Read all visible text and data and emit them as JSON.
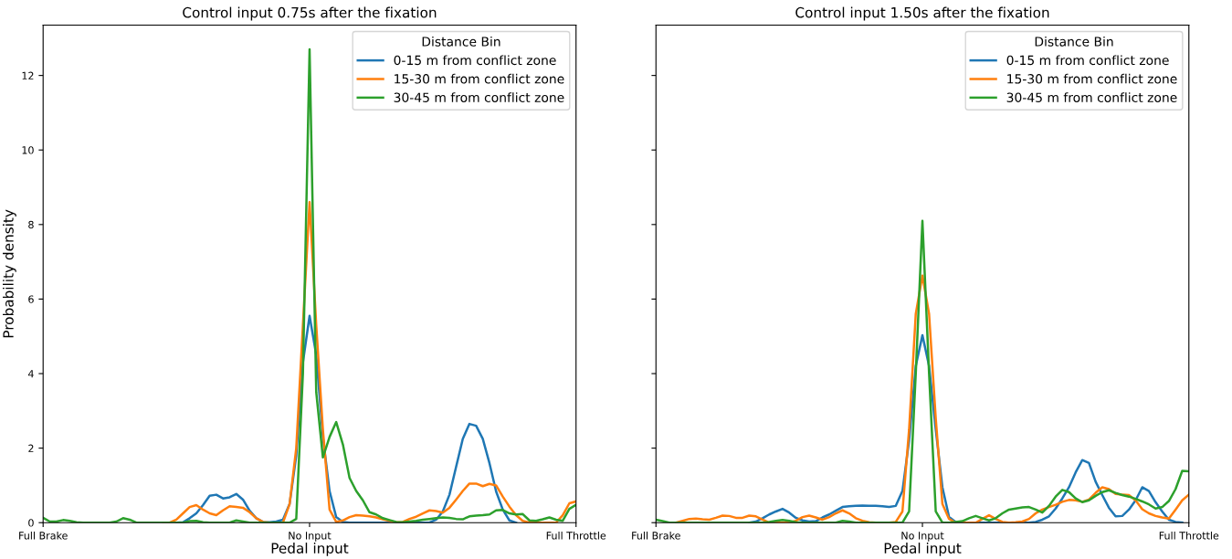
{
  "chart_data": [
    {
      "type": "line",
      "title": "Control input 0.75s after the fixation",
      "xlabel": "Pedal input",
      "ylabel": "Probability density",
      "legend_title": "Distance Bin",
      "legend": "top right",
      "grid": false,
      "categories": [
        "Full Brake",
        null,
        null,
        null,
        null,
        null,
        null,
        null,
        null,
        null,
        null,
        null,
        null,
        null,
        null,
        null,
        null,
        null,
        null,
        null,
        null,
        null,
        null,
        null,
        null,
        null,
        null,
        null,
        null,
        null,
        null,
        null,
        null,
        null,
        null,
        null,
        null,
        null,
        null,
        null,
        "No Input",
        null,
        null,
        null,
        null,
        null,
        null,
        null,
        null,
        null,
        null,
        null,
        null,
        null,
        null,
        null,
        null,
        null,
        null,
        null,
        null,
        null,
        null,
        null,
        null,
        null,
        null,
        null,
        null,
        null,
        null,
        null,
        null,
        null,
        null,
        null,
        null,
        null,
        null,
        null,
        "Full Throttle"
      ],
      "ylim": [
        0,
        13.35
      ],
      "yticks": [
        0,
        2,
        4,
        6,
        8,
        10,
        12
      ],
      "series": [
        {
          "name": "0-15 m from conflict zone",
          "color": "#1f77b4",
          "values": [
            null,
            null,
            null,
            null,
            null,
            null,
            null,
            null,
            null,
            null,
            null,
            null,
            null,
            null,
            null,
            null,
            null,
            null,
            null,
            null,
            0,
            0.01,
            0.12,
            0.25,
            0.47,
            0.72,
            0.75,
            0.65,
            0.68,
            0.77,
            0.62,
            0.32,
            0.12,
            0.02,
            0.01,
            0.03,
            0.08,
            0.5,
            1.8,
            4.3,
            5.55,
            4.5,
            2.3,
            0.85,
            0.15,
            0.02,
            0,
            0,
            0,
            0,
            0,
            0,
            0,
            0,
            0,
            0,
            0,
            0,
            0,
            0.08,
            0.3,
            0.75,
            1.5,
            2.25,
            2.65,
            2.6,
            2.25,
            1.6,
            0.84,
            0.35,
            0.06,
            0,
            null,
            null,
            null,
            null,
            null,
            null,
            null,
            null,
            null
          ]
        },
        {
          "name": "15-30 m from conflict zone",
          "color": "#ff7f0e",
          "values": [
            null,
            null,
            null,
            null,
            null,
            null,
            null,
            null,
            null,
            null,
            null,
            null,
            null,
            null,
            null,
            null,
            null,
            null,
            0,
            0,
            0.08,
            0.25,
            0.42,
            0.47,
            0.35,
            0.25,
            0.2,
            0.33,
            0.44,
            0.42,
            0.4,
            0.28,
            0.12,
            0.02,
            0,
            0,
            0,
            0.5,
            2.0,
            5.3,
            8.6,
            5.3,
            2.5,
            0.35,
            0.02,
            0.06,
            0.15,
            0.2,
            0.19,
            0.17,
            0.14,
            0.09,
            0.05,
            0.01,
            0.02,
            0.1,
            0.16,
            0.25,
            0.33,
            0.31,
            0.27,
            0.4,
            0.62,
            0.85,
            1.05,
            1.05,
            0.98,
            1.04,
            1.0,
            0.7,
            0.43,
            0.2,
            0.05,
            0,
            0,
            0,
            0,
            0,
            0.2,
            0.52,
            0.57
          ]
        },
        {
          "name": "30-45 m from conflict zone",
          "color": "#2ca02c",
          "values": [
            0.13,
            0.03,
            0.03,
            0.07,
            0.05,
            0.01,
            0,
            0,
            0,
            0,
            0,
            0.03,
            0.12,
            0.08,
            0,
            0,
            0,
            0,
            0,
            0,
            0,
            0,
            0.04,
            0.05,
            0.01,
            0,
            0,
            0,
            0,
            0.06,
            0.03,
            0,
            0,
            0,
            0,
            0,
            0,
            0,
            0.1,
            4.0,
            12.7,
            3.5,
            1.75,
            2.3,
            2.7,
            2.1,
            1.2,
            0.85,
            0.6,
            0.28,
            0.22,
            0.12,
            0.07,
            0.02,
            0.01,
            0.03,
            0.05,
            0.08,
            0.1,
            0.12,
            0.14,
            0.13,
            0.1,
            0.09,
            0.17,
            0.19,
            0.2,
            0.22,
            0.33,
            0.34,
            0.25,
            0.22,
            0.23,
            0.06,
            0.05,
            0.09,
            0.14,
            0.08,
            0.05,
            0.37,
            0.48
          ]
        }
      ]
    },
    {
      "type": "line",
      "title": "Control input 1.50s after the fixation",
      "xlabel": "Pedal input",
      "legend_title": "Distance Bin",
      "legend": "top right",
      "grid": false,
      "tick_labels": "x",
      "categories": [
        "Full Brake",
        null,
        null,
        null,
        null,
        null,
        null,
        null,
        null,
        null,
        null,
        null,
        null,
        null,
        null,
        null,
        null,
        null,
        null,
        null,
        null,
        null,
        null,
        null,
        null,
        null,
        null,
        null,
        null,
        null,
        null,
        null,
        null,
        null,
        null,
        null,
        null,
        null,
        null,
        null,
        "No Input",
        null,
        null,
        null,
        null,
        null,
        null,
        null,
        null,
        null,
        null,
        null,
        null,
        null,
        null,
        null,
        null,
        null,
        null,
        null,
        null,
        null,
        null,
        null,
        null,
        null,
        null,
        null,
        null,
        null,
        null,
        null,
        null,
        null,
        null,
        null,
        null,
        null,
        null,
        null,
        "Full Throttle"
      ],
      "ylim": [
        0,
        13.35
      ],
      "yticks": [
        0,
        2,
        4,
        6,
        8,
        10,
        12
      ],
      "series": [
        {
          "name": "0-15 m from conflict zone",
          "color": "#1f77b4",
          "values": [
            null,
            null,
            null,
            null,
            null,
            null,
            null,
            null,
            null,
            null,
            null,
            null,
            null,
            null,
            0,
            0.03,
            0.12,
            0.22,
            0.3,
            0.37,
            0.27,
            0.13,
            0.06,
            0.03,
            0.04,
            0.14,
            0.22,
            0.32,
            0.42,
            0.44,
            0.45,
            0.46,
            0.45,
            0.45,
            0.44,
            0.42,
            0.45,
            0.85,
            2.2,
            4.2,
            5.03,
            4.2,
            2.5,
            0.95,
            0.15,
            0.02,
            0,
            0,
            0,
            0,
            0,
            0,
            0,
            0,
            0,
            0,
            0,
            0.02,
            0.08,
            0.17,
            0.38,
            0.65,
            0.95,
            1.35,
            1.68,
            1.6,
            1.1,
            0.74,
            0.4,
            0.17,
            0.18,
            0.35,
            0.6,
            0.95,
            0.85,
            0.55,
            0.3,
            0.08,
            0.02,
            0,
            null
          ]
        },
        {
          "name": "15-30 m from conflict zone",
          "color": "#ff7f0e",
          "values": [
            null,
            null,
            null,
            0,
            0.05,
            0.1,
            0.11,
            0.09,
            0.08,
            0.13,
            0.19,
            0.18,
            0.13,
            0.13,
            0.19,
            0.17,
            0.08,
            0,
            0,
            0,
            0,
            0.05,
            0.15,
            0.19,
            0.14,
            0.08,
            0.15,
            0.25,
            0.33,
            0.25,
            0.12,
            0.05,
            0.01,
            0,
            0,
            0,
            0.02,
            0.3,
            2.5,
            5.6,
            6.63,
            5.6,
            2.8,
            0.5,
            0.1,
            0,
            0,
            0,
            0,
            0.1,
            0.2,
            0.1,
            0.02,
            0,
            0.01,
            0.03,
            0.1,
            0.25,
            0.35,
            0.42,
            0.48,
            0.56,
            0.61,
            0.6,
            0.56,
            0.62,
            0.8,
            0.95,
            0.9,
            0.77,
            0.75,
            0.74,
            0.6,
            0.36,
            0.25,
            0.18,
            0.14,
            0.11,
            0.35,
            0.6,
            0.75
          ]
        },
        {
          "name": "30-45 m from conflict zone",
          "color": "#2ca02c",
          "values": [
            0.08,
            0.04,
            0,
            0,
            0,
            0,
            0,
            0,
            0,
            0,
            0,
            0,
            0,
            0,
            0,
            0,
            0,
            0.02,
            0.05,
            0.07,
            0.05,
            0.01,
            0,
            0,
            0,
            0,
            0,
            0,
            0.05,
            0.03,
            0,
            0,
            0,
            0,
            0,
            0,
            0,
            0,
            0.3,
            4.0,
            8.1,
            4.0,
            0.3,
            0,
            0,
            0.02,
            0.04,
            0.12,
            0.18,
            0.12,
            0.06,
            0.12,
            0.25,
            0.35,
            0.38,
            0.41,
            0.42,
            0.35,
            0.27,
            0.45,
            0.7,
            0.88,
            0.82,
            0.65,
            0.55,
            0.6,
            0.72,
            0.82,
            0.87,
            0.8,
            0.74,
            0.7,
            0.64,
            0.57,
            0.49,
            0.38,
            0.42,
            0.58,
            0.9,
            1.39,
            1.38
          ]
        }
      ]
    }
  ]
}
